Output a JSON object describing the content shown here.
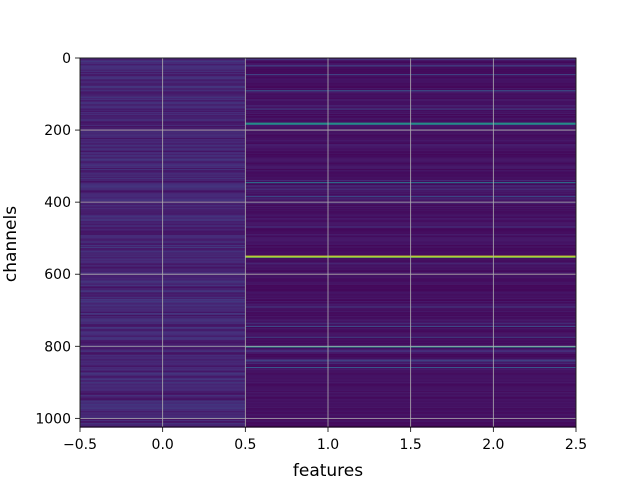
{
  "chart_data": {
    "type": "heatmap",
    "title": "",
    "xlabel": "features",
    "ylabel": "channels",
    "xlim": [
      -0.5,
      2.5
    ],
    "ylim": [
      1024,
      0
    ],
    "y_inverted": true,
    "grid": true,
    "colormap": "viridis",
    "columns": [
      {
        "range": [
          -0.5,
          0.5
        ],
        "base_level": 0.05,
        "note_level": "noisy low"
      },
      {
        "range": [
          0.5,
          2.5
        ],
        "base_level": 0.02,
        "note_level": "low with bright rows"
      }
    ],
    "bright_rows": [
      {
        "channel": 20,
        "value": 0.22
      },
      {
        "channel": 45,
        "value": 0.2
      },
      {
        "channel": 90,
        "value": 0.28
      },
      {
        "channel": 180,
        "value": 0.55
      },
      {
        "channel": 183,
        "value": 0.45
      },
      {
        "channel": 345,
        "value": 0.4
      },
      {
        "channel": 385,
        "value": 0.25
      },
      {
        "channel": 548,
        "value": 0.95
      },
      {
        "channel": 552,
        "value": 0.8
      },
      {
        "channel": 690,
        "value": 0.18
      },
      {
        "channel": 745,
        "value": 0.22
      },
      {
        "channel": 775,
        "value": 0.2
      },
      {
        "channel": 800,
        "value": 0.5
      },
      {
        "channel": 840,
        "value": 0.22
      },
      {
        "channel": 858,
        "value": 0.28
      }
    ],
    "x_ticks": [
      "−0.5",
      "0.0",
      "0.5",
      "1.0",
      "1.5",
      "2.0",
      "2.5"
    ],
    "x_tick_values": [
      -0.5,
      0.0,
      0.5,
      1.0,
      1.5,
      2.0,
      2.5
    ],
    "y_ticks": [
      "0",
      "200",
      "400",
      "600",
      "800",
      "1000"
    ],
    "y_tick_values": [
      0,
      200,
      400,
      600,
      800,
      1000
    ]
  }
}
